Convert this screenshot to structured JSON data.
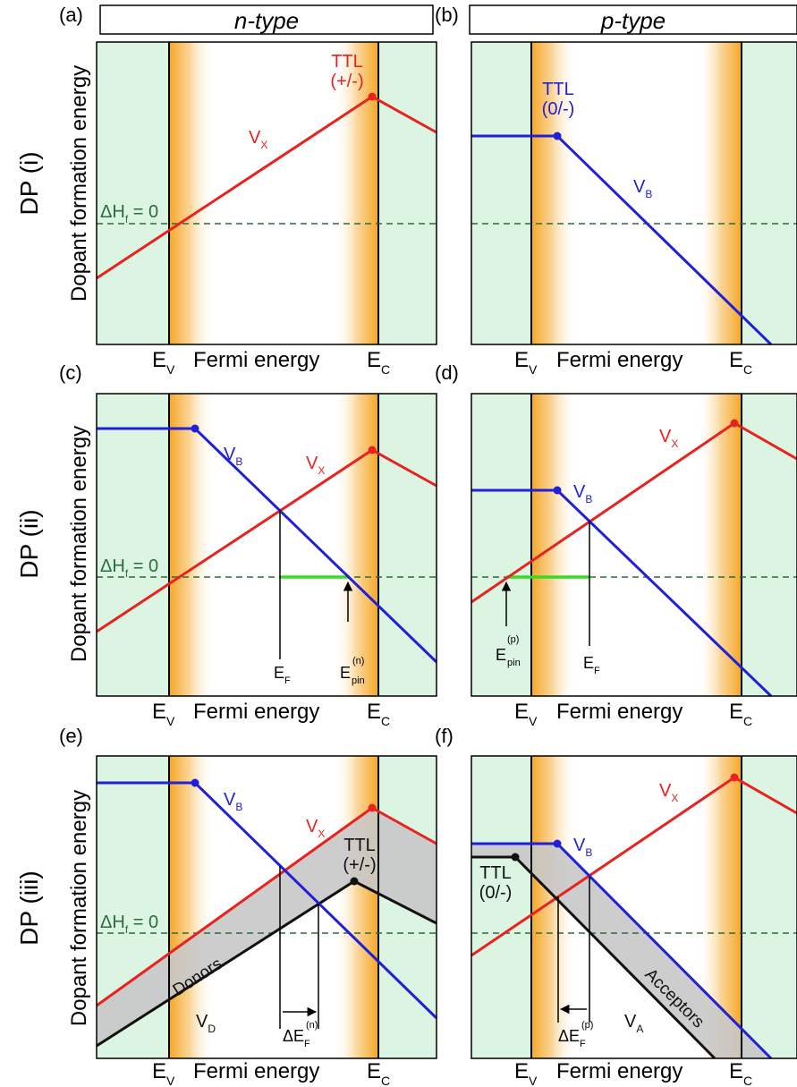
{
  "panels": {
    "a": {
      "letter": "(a)",
      "header": "n-type"
    },
    "b": {
      "letter": "(b)",
      "header": "p-type"
    },
    "c": {
      "letter": "(c)"
    },
    "d": {
      "letter": "(d)"
    },
    "e": {
      "letter": "(e)"
    },
    "f": {
      "letter": "(f)"
    }
  },
  "rows": {
    "i": "DP (i)",
    "ii": "DP (ii)",
    "iii": "DP (iii)"
  },
  "common": {
    "ylabel": "Dopant formation energy",
    "xlabel": "Fermi energy",
    "ev": "E",
    "ev_sub": "V",
    "ec": "E",
    "ec_sub": "C",
    "dh": "ΔH",
    "dh_sub": "f",
    "dh_eq": " = 0"
  },
  "labels": {
    "ttl_pm": "TTL",
    "ttl_pm_state": "(+/-)",
    "ttl_0m": "TTL",
    "ttl_0m_state": "(0/-)",
    "v": "V",
    "sub_x": "X",
    "sub_b": "B",
    "sub_d": "D",
    "sub_a": "A",
    "ef": "E",
    "ef_sub": "F",
    "epin": "E",
    "epin_n_sup": "(n)",
    "epin_p_sup": "(p)",
    "epin_sub": "pin",
    "delta_ef": "ΔE",
    "delta_ef_sub": "F",
    "donors": "Donors",
    "acceptors": "Acceptors"
  },
  "colors": {
    "green_bg": "#dcf5e3",
    "orange": "#f5a623",
    "red_line": "#e8221f",
    "blue_line": "#2020d8",
    "black_line": "#111111",
    "green_zero_line": "#2b6b3e",
    "pin_bar": "#33dd22",
    "gray_band": "#c8c8c8"
  }
}
